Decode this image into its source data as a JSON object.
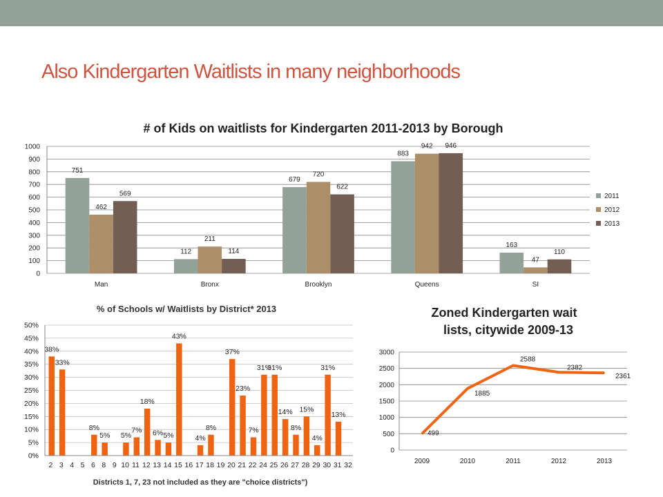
{
  "slide": {
    "title": "Also Kindergarten Waitlists in many neighborhoods"
  },
  "colors": {
    "topbar": "#93a299",
    "title": "#cf543f",
    "s2011": "#93a299",
    "s2012": "#ad8f67",
    "s2013": "#725e53",
    "orange": "#ef6412"
  },
  "chart_data": [
    {
      "type": "bar",
      "title": "# of Kids on waitlists for Kindergarten 2011-2013 by Borough",
      "categories": [
        "Man",
        "Bronx",
        "Brooklyn",
        "Queens",
        "SI"
      ],
      "series": [
        {
          "name": "2011",
          "values": [
            751,
            112,
            679,
            883,
            163
          ]
        },
        {
          "name": "2012",
          "values": [
            462,
            211,
            720,
            942,
            47
          ]
        },
        {
          "name": "2013",
          "values": [
            569,
            114,
            622,
            946,
            110
          ]
        }
      ],
      "ylim": [
        0,
        1000
      ],
      "yticks": [
        "0",
        "100",
        "200",
        "300",
        "400",
        "500",
        "600",
        "700",
        "800",
        "900",
        "1000"
      ],
      "grid": true,
      "legend": "right"
    },
    {
      "type": "bar",
      "title": "% of Schools w/ Waitlists  by District*  2013",
      "xlabel": "Districts 1, 7, 23 not included as they are \"choice districts\")",
      "categories": [
        "2",
        "3",
        "4",
        "5",
        "6",
        "8",
        "9",
        "10",
        "11",
        "12",
        "13",
        "14",
        "15",
        "16",
        "17",
        "18",
        "19",
        "20",
        "21",
        "22",
        "24",
        "25",
        "26",
        "27",
        "28",
        "29",
        "30",
        "31",
        "32"
      ],
      "values": [
        38,
        33,
        0,
        0,
        8,
        5,
        0,
        5,
        7,
        18,
        6,
        5,
        43,
        0,
        4,
        8,
        0,
        37,
        23,
        7,
        31,
        31,
        14,
        8,
        15,
        4,
        31,
        13,
        0
      ],
      "data_labels": [
        "38%",
        "33%",
        "",
        "",
        "8%",
        "5%",
        "",
        "5%",
        "7%",
        "18%",
        "6%",
        "5%",
        "43%",
        "",
        "4%",
        "8%",
        "",
        "37%",
        "23%",
        "7%",
        "31%",
        "31%",
        "14%",
        "8%",
        "15%",
        "4%",
        "31%",
        "13%",
        ""
      ],
      "ylim": [
        0,
        50
      ],
      "yticks": [
        "0%",
        "5%",
        "10%",
        "15%",
        "20%",
        "25%",
        "30%",
        "35%",
        "40%",
        "45%",
        "50%"
      ],
      "grid": true
    },
    {
      "type": "line",
      "title": "Zoned Kindergarten wait lists, citywide 2009-13",
      "title_lines": [
        "Zoned Kindergarten wait",
        "lists, citywide 2009-13"
      ],
      "categories": [
        "2009",
        "2010",
        "2011",
        "2012",
        "2013"
      ],
      "values": [
        499,
        1885,
        2588,
        2382,
        2361
      ],
      "data_labels": [
        "499",
        "1885",
        "2588",
        "2382",
        "2361"
      ],
      "ylim": [
        0,
        3000
      ],
      "yticks": [
        "0",
        "500",
        "1000",
        "1500",
        "2000",
        "2500",
        "3000"
      ],
      "grid": true
    }
  ]
}
